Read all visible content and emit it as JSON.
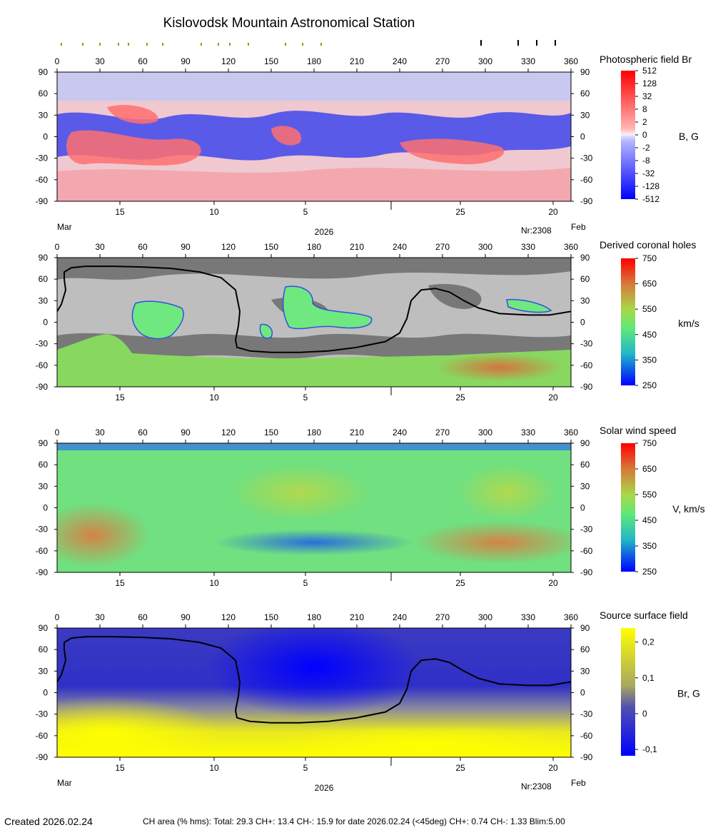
{
  "title": "Kislovodsk Mountain Astronomical Station",
  "footer": {
    "created": "Created  2026.02.24",
    "stats": "CH area (% hms): Total: 29.3 CH+: 13.4   CH-: 15.9 for date 2026.02.24 (<45deg) CH+: 0.74    CH-: 1.33 Blim:5.00"
  },
  "date_axis": {
    "labels": [
      "15",
      "10",
      "5",
      "25",
      "20"
    ],
    "month_left": "Mar",
    "month_right": "Feb",
    "year": "2026",
    "rotation": "Nr:2308"
  },
  "marks": {
    "top_minor_longitudes": [
      3,
      18,
      30,
      43,
      50,
      63,
      74,
      101,
      113,
      121,
      134,
      160,
      172,
      185
    ],
    "top_major_longitudes": [
      297,
      323,
      336,
      349
    ]
  },
  "colors": {
    "neutral_line": "#000000",
    "ch_gray_dark": "#787878",
    "ch_gray_light": "#bebebe"
  },
  "chart_data": [
    {
      "type": "heatmap",
      "name": "photospheric-field",
      "title": "Photospheric field Br",
      "unit": "B, G",
      "x_range": [
        0,
        360
      ],
      "y_range": [
        -90,
        90
      ],
      "x_ticks": [
        0,
        30,
        60,
        90,
        120,
        150,
        180,
        210,
        240,
        270,
        300,
        330,
        360
      ],
      "y_ticks": [
        90,
        60,
        30,
        0,
        -30,
        -60,
        -90
      ],
      "colorbar_ticks": [
        "512",
        "128",
        "32",
        "8",
        "2",
        "0",
        "-2",
        "-8",
        "-32",
        "-128",
        "-512"
      ]
    },
    {
      "type": "heatmap",
      "name": "derived-coronal-holes",
      "title": "Derived coronal holes",
      "unit": "km/s",
      "x_range": [
        0,
        360
      ],
      "y_range": [
        -90,
        90
      ],
      "x_ticks": [
        0,
        30,
        60,
        90,
        120,
        150,
        180,
        210,
        240,
        270,
        300,
        330,
        360
      ],
      "y_ticks": [
        90,
        60,
        30,
        0,
        -30,
        -60,
        -90
      ],
      "colorbar_ticks": [
        "750",
        "650",
        "550",
        "450",
        "350",
        "250"
      ]
    },
    {
      "type": "heatmap",
      "name": "solar-wind-speed",
      "title": "Solar wind speed",
      "unit": "V, km/s",
      "x_range": [
        0,
        360
      ],
      "y_range": [
        -90,
        90
      ],
      "x_ticks": [
        0,
        30,
        60,
        90,
        120,
        150,
        180,
        210,
        240,
        270,
        300,
        330,
        360
      ],
      "y_ticks": [
        90,
        60,
        30,
        0,
        -30,
        -60,
        -90
      ],
      "colorbar_ticks": [
        "750",
        "650",
        "550",
        "450",
        "350",
        "250"
      ]
    },
    {
      "type": "heatmap",
      "name": "source-surface-field",
      "title": "Source surface field",
      "unit": "Br, G",
      "x_range": [
        0,
        360
      ],
      "y_range": [
        -90,
        90
      ],
      "x_ticks": [
        0,
        30,
        60,
        90,
        120,
        150,
        180,
        210,
        240,
        270,
        300,
        330,
        360
      ],
      "y_ticks": [
        90,
        60,
        30,
        0,
        -30,
        -60,
        -90
      ],
      "colorbar_ticks": [
        "0,2",
        "0,1",
        "0",
        "-0,1"
      ]
    }
  ],
  "neutral_line": {
    "lon": [
      0,
      3,
      6,
      5,
      5,
      10,
      20,
      40,
      60,
      80,
      100,
      115,
      125,
      128,
      127,
      125,
      126,
      135,
      150,
      170,
      190,
      210,
      230,
      240,
      245,
      248,
      255,
      265,
      275,
      285,
      295,
      310,
      330,
      345,
      360
    ],
    "lat": [
      15,
      25,
      45,
      60,
      70,
      76,
      78,
      78,
      77,
      75,
      70,
      62,
      45,
      15,
      -5,
      -25,
      -35,
      -40,
      -42,
      -42,
      -40,
      -35,
      -27,
      -15,
      5,
      30,
      45,
      47,
      42,
      30,
      20,
      12,
      10,
      10,
      15
    ]
  }
}
